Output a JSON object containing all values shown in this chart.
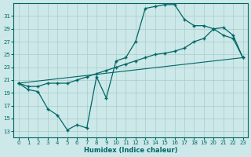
{
  "xlabel": "Humidex (Indice chaleur)",
  "bg_color": "#cce8e8",
  "grid_color": "#aacccc",
  "line_color": "#006666",
  "xlim": [
    -0.5,
    23.5
  ],
  "ylim": [
    12,
    33
  ],
  "xticks": [
    0,
    1,
    2,
    3,
    4,
    5,
    6,
    7,
    8,
    9,
    10,
    11,
    12,
    13,
    14,
    15,
    16,
    17,
    18,
    19,
    20,
    21,
    22,
    23
  ],
  "yticks": [
    13,
    15,
    17,
    19,
    21,
    23,
    25,
    27,
    29,
    31
  ],
  "line1_x": [
    0,
    1,
    2,
    3,
    4,
    5,
    6,
    7,
    8,
    9,
    10,
    11,
    12,
    13,
    14,
    15,
    16,
    17,
    18,
    19,
    20,
    21,
    22,
    23
  ],
  "line1_y": [
    20.5,
    19.5,
    19.2,
    16.5,
    15.5,
    13.2,
    14.0,
    13.5,
    21.5,
    18.2,
    24.0,
    24.5,
    27.0,
    32.2,
    32.5,
    32.8,
    32.8,
    30.5,
    29.5,
    29.5,
    29.0,
    28.0,
    27.5,
    24.5
  ],
  "line2_x": [
    0,
    1,
    2,
    3,
    4,
    5,
    6,
    7,
    8,
    9,
    10,
    11,
    12,
    13,
    14,
    15,
    16,
    17,
    18,
    19,
    20,
    21,
    22,
    23
  ],
  "line2_y": [
    20.5,
    20.0,
    20.0,
    20.5,
    20.5,
    20.5,
    21.0,
    21.5,
    22.0,
    22.5,
    23.0,
    23.5,
    24.0,
    24.5,
    25.0,
    25.2,
    25.5,
    26.0,
    27.0,
    27.5,
    29.0,
    29.2,
    28.0,
    24.5
  ],
  "line3_x": [
    0,
    23
  ],
  "line3_y": [
    20.5,
    24.5
  ]
}
